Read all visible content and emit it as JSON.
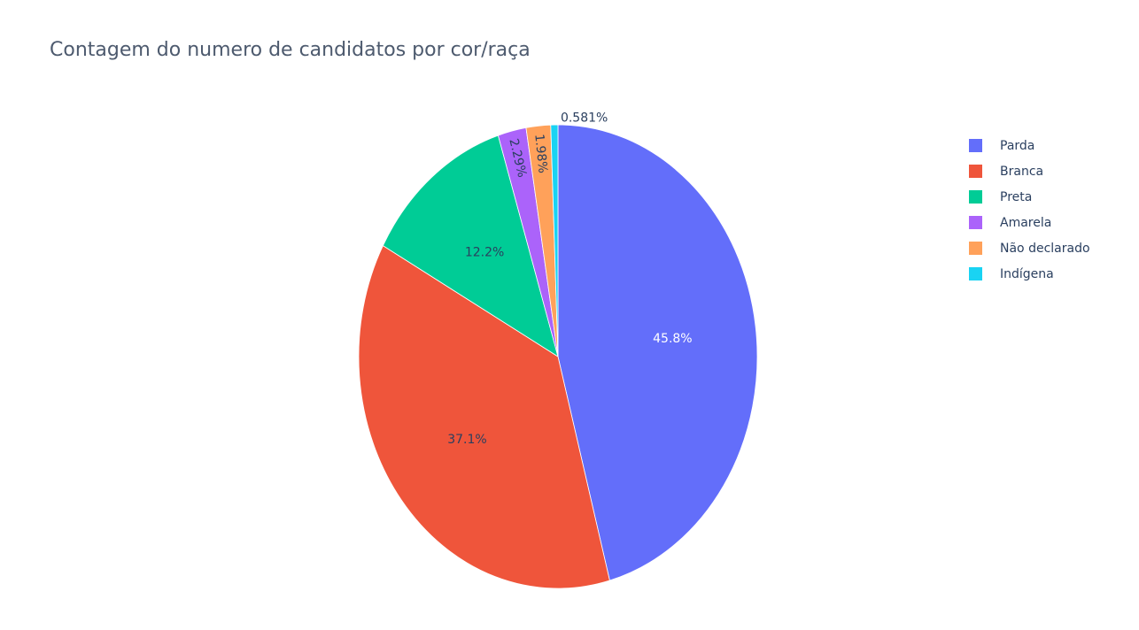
{
  "chart_data": {
    "type": "pie",
    "title": "Contagem do numero de candidatos por cor/raça",
    "legend_position": "right",
    "slices": [
      {
        "label": "Parda",
        "value": 45.8,
        "display": "45.8%",
        "color": "#636efa"
      },
      {
        "label": "Branca",
        "value": 37.1,
        "display": "37.1%",
        "color": "#ef553b"
      },
      {
        "label": "Preta",
        "value": 12.2,
        "display": "12.2%",
        "color": "#00cc96"
      },
      {
        "label": "Amarela",
        "value": 2.29,
        "display": "2.29%",
        "color": "#ab63fa"
      },
      {
        "label": "Não declarado",
        "value": 1.98,
        "display": "1.98%",
        "color": "#ffa15a"
      },
      {
        "label": "Indígena",
        "value": 0.581,
        "display": "0.581%",
        "color": "#19d3f3"
      }
    ]
  }
}
